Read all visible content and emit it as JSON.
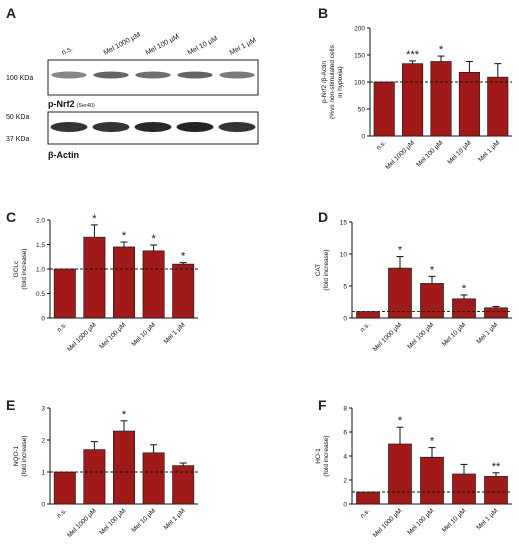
{
  "panel_a": {
    "letter": "A",
    "lane_labels": [
      "n.s.",
      "Mel 1000 µM",
      "Mel 100 µM",
      "Mel 10 µM",
      "Mel 1 µM"
    ],
    "band1_marker": "100 KDa",
    "band1_caption": "p-Nrf2",
    "band1_caption_sub": "(Ser40)",
    "band2_marker_top": "50 KDa",
    "band2_marker_bottom": "37 KDa",
    "band2_caption": "β-Actin"
  },
  "bar_color": "#a11a1a",
  "chart_data": [
    {
      "id": "B",
      "type": "bar",
      "letter": "B",
      "ylabel_lines": [
        "p-Nrf2 /β-Actin",
        "(%vs non-stimulated cells",
        "in hypoxia)"
      ],
      "categories": [
        "n.s.",
        "Mel 1000 µM",
        "Mel 100 µM",
        "Mel 10 µM",
        "Mel 1 µM"
      ],
      "values": [
        100,
        134,
        138,
        118,
        109
      ],
      "errors": [
        0,
        5,
        10,
        20,
        25
      ],
      "significance": [
        "",
        "***",
        "*",
        "",
        ""
      ],
      "ylim": [
        0,
        200
      ],
      "yticks": [
        0,
        50,
        100,
        150,
        200
      ],
      "baseline": 100
    },
    {
      "id": "C",
      "type": "bar",
      "letter": "C",
      "ylabel_lines": [
        "GCLc",
        "(fold increase)"
      ],
      "categories": [
        "n.s.",
        "Mel 1000 µM",
        "Mel 100 µM",
        "Mel 10 µM",
        "Mel 1 µM"
      ],
      "values": [
        1.0,
        1.65,
        1.45,
        1.37,
        1.1
      ],
      "errors": [
        0,
        0.25,
        0.1,
        0.12,
        0.03
      ],
      "significance": [
        "",
        "*",
        "*",
        "*",
        "*"
      ],
      "ylim": [
        0,
        2.0
      ],
      "yticks": [
        0,
        0.5,
        1.0,
        1.5,
        2.0
      ],
      "ytick_labels": [
        "0",
        "0.5",
        "1.0",
        "1.5",
        "2.0"
      ],
      "baseline": 1.0
    },
    {
      "id": "D",
      "type": "bar",
      "letter": "D",
      "ylabel_lines": [
        "CAT",
        "(fold increase)"
      ],
      "categories": [
        "n.s.",
        "Mel 1000 µM",
        "Mel 100 µM",
        "Mel 10 µM",
        "Mel 1 µM"
      ],
      "values": [
        1.0,
        7.8,
        5.4,
        3.0,
        1.6
      ],
      "errors": [
        0,
        1.8,
        1.1,
        0.6,
        0.2
      ],
      "significance": [
        "",
        "*",
        "*",
        "*",
        ""
      ],
      "ylim": [
        0,
        15
      ],
      "yticks": [
        0,
        5,
        10,
        15
      ],
      "baseline": 1.0
    },
    {
      "id": "E",
      "type": "bar",
      "letter": "E",
      "ylabel_lines": [
        "NQO-1",
        "(fold increase)"
      ],
      "categories": [
        "n.s.",
        "Mel 1000 µM",
        "Mel 100 µM",
        "Mel 10 µM",
        "Mel 1 µM"
      ],
      "values": [
        1.0,
        1.7,
        2.28,
        1.6,
        1.2
      ],
      "errors": [
        0,
        0.25,
        0.32,
        0.25,
        0.08
      ],
      "significance": [
        "",
        "",
        "*",
        "",
        ""
      ],
      "ylim": [
        0,
        3
      ],
      "yticks": [
        0,
        1,
        2,
        3
      ],
      "baseline": 1.0
    },
    {
      "id": "F",
      "type": "bar",
      "letter": "F",
      "ylabel_lines": [
        "HO-1",
        "(fold increase)"
      ],
      "categories": [
        "n.s.",
        "Mel 1000 µM",
        "Mel 100 µM",
        "Mel 10 µM",
        "Mel 1 µM"
      ],
      "values": [
        1.0,
        5.0,
        3.9,
        2.5,
        2.3
      ],
      "errors": [
        0,
        1.4,
        0.8,
        0.8,
        0.3
      ],
      "significance": [
        "",
        "*",
        "*",
        "",
        "**"
      ],
      "ylim": [
        0,
        8
      ],
      "yticks": [
        0,
        2,
        4,
        6,
        8
      ],
      "baseline": 1.0
    }
  ]
}
